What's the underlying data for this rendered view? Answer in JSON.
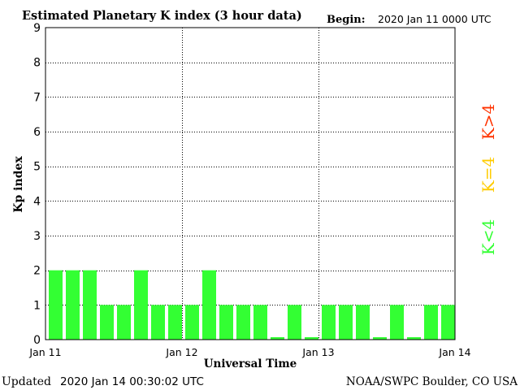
{
  "header": {
    "title": "Estimated Planetary K index (3 hour data)",
    "begin_label": "Begin:",
    "begin_value": "2020 Jan 11 0000 UTC"
  },
  "footer": {
    "updated_label": "Updated",
    "updated_value": "2020 Jan 14 00:30:02 UTC",
    "credit": "NOAA/SWPC Boulder, CO USA"
  },
  "legend": {
    "high": {
      "text": "K>4",
      "color": "#ff3300"
    },
    "equal": {
      "text": "K=4",
      "color": "#ffcc00"
    },
    "low": {
      "text": "K<4",
      "color": "#33ff33"
    }
  },
  "chart_data": {
    "type": "bar",
    "title": "Estimated Planetary K index (3 hour data)",
    "xlabel": "Universal Time",
    "ylabel": "Kp index",
    "ylim": [
      0,
      9
    ],
    "y_ticks": [
      "0",
      "1",
      "2",
      "3",
      "4",
      "5",
      "6",
      "7",
      "8",
      "9"
    ],
    "x_tick_labels": [
      "Jan 11",
      "Jan 12",
      "Jan 13",
      "Jan 14"
    ],
    "grid": true,
    "bar_color": "#33ff33",
    "categories": [
      "2020-01-11 00",
      "2020-01-11 03",
      "2020-01-11 06",
      "2020-01-11 09",
      "2020-01-11 12",
      "2020-01-11 15",
      "2020-01-11 18",
      "2020-01-11 21",
      "2020-01-12 00",
      "2020-01-12 03",
      "2020-01-12 06",
      "2020-01-12 09",
      "2020-01-12 12",
      "2020-01-12 15",
      "2020-01-12 18",
      "2020-01-12 21",
      "2020-01-13 00",
      "2020-01-13 03",
      "2020-01-13 06",
      "2020-01-13 09",
      "2020-01-13 12",
      "2020-01-13 15",
      "2020-01-13 18",
      "2020-01-13 21"
    ],
    "values": [
      2,
      2,
      2,
      1,
      1,
      2,
      1,
      1,
      1,
      2,
      1,
      1,
      1,
      0,
      1,
      0,
      1,
      1,
      1,
      0,
      1,
      0,
      1,
      1
    ]
  }
}
